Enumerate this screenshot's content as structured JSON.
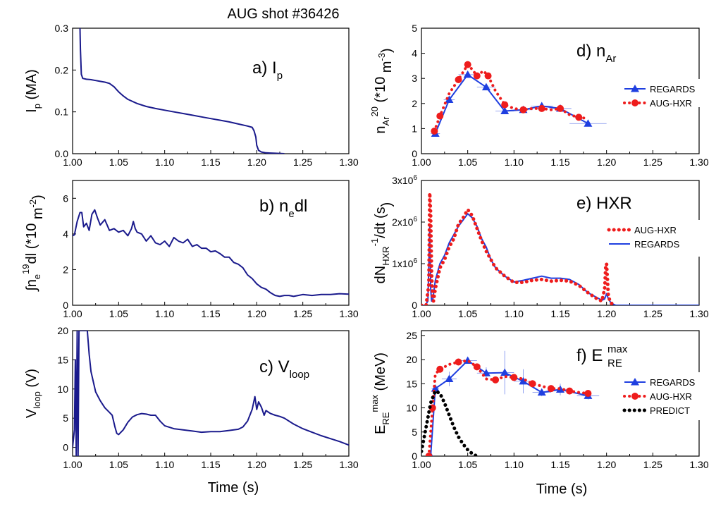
{
  "figure_title": "AUG shot #36426",
  "x_axis_title": "Time (s)",
  "x_tick_labels": [
    "1.00",
    "1.05",
    "1.10",
    "1.15",
    "1.20",
    "1.25",
    "1.30"
  ],
  "chart_data": [
    {
      "id": "a",
      "type": "line",
      "panel_label": "a) I",
      "panel_label_sub": "p",
      "ylabel": "I",
      "ylabel_sub": "p",
      "ylabel_tail": " (MA)",
      "xlim": [
        1.0,
        1.3
      ],
      "ylim": [
        0,
        0.3
      ],
      "y_ticks": [
        "0.0",
        "0.1",
        "0.2",
        "0.3"
      ],
      "y_tick_values": [
        0,
        0.1,
        0.2,
        0.3
      ],
      "series": [
        {
          "color": "#1a1a8c",
          "x": [
            1.008,
            1.0085,
            1.0095,
            1.011,
            1.015,
            1.02,
            1.025,
            1.03,
            1.035,
            1.04,
            1.045,
            1.05,
            1.055,
            1.06,
            1.07,
            1.08,
            1.09,
            1.1,
            1.11,
            1.12,
            1.13,
            1.14,
            1.15,
            1.16,
            1.17,
            1.18,
            1.19,
            1.195,
            1.197,
            1.199,
            1.2,
            1.202,
            1.205,
            1.21,
            1.22,
            1.23
          ],
          "y": [
            0.3,
            0.25,
            0.19,
            0.18,
            0.178,
            0.177,
            0.175,
            0.173,
            0.171,
            0.168,
            0.16,
            0.148,
            0.138,
            0.13,
            0.12,
            0.113,
            0.108,
            0.104,
            0.1,
            0.096,
            0.092,
            0.088,
            0.084,
            0.08,
            0.076,
            0.071,
            0.066,
            0.063,
            0.055,
            0.04,
            0.02,
            0.008,
            0.004,
            0.002,
            0.001,
            0.0
          ]
        }
      ]
    },
    {
      "id": "b",
      "type": "line",
      "panel_label": "b) n",
      "panel_label_sub": "e",
      "panel_label_tail": "dl",
      "ylabel": "∫n",
      "ylabel_sub": "e",
      "ylabel_tail": "dl (*10",
      "ylabel_sup": "19",
      "ylabel_tail2": " m",
      "ylabel_sup2": "-2",
      "ylabel_end": ")",
      "xlim": [
        1.0,
        1.3
      ],
      "ylim": [
        0,
        7
      ],
      "y_ticks": [
        "0",
        "2",
        "4",
        "6"
      ],
      "y_tick_values": [
        0,
        2,
        4,
        6
      ],
      "series": [
        {
          "color": "#1a1a8c",
          "x": [
            1.0,
            1.002,
            1.005,
            1.008,
            1.01,
            1.012,
            1.015,
            1.018,
            1.021,
            1.024,
            1.027,
            1.03,
            1.035,
            1.04,
            1.045,
            1.05,
            1.055,
            1.06,
            1.064,
            1.066,
            1.068,
            1.07,
            1.075,
            1.08,
            1.085,
            1.09,
            1.095,
            1.1,
            1.105,
            1.11,
            1.115,
            1.12,
            1.125,
            1.13,
            1.135,
            1.14,
            1.145,
            1.15,
            1.155,
            1.16,
            1.165,
            1.17,
            1.175,
            1.18,
            1.185,
            1.19,
            1.195,
            1.2,
            1.205,
            1.21,
            1.215,
            1.22,
            1.225,
            1.23,
            1.235,
            1.24,
            1.245,
            1.25,
            1.26,
            1.27,
            1.28,
            1.29,
            1.3
          ],
          "y": [
            3.9,
            3.95,
            4.7,
            5.2,
            5.2,
            4.4,
            4.6,
            4.2,
            5.1,
            5.35,
            4.9,
            4.5,
            4.8,
            4.2,
            4.3,
            4.1,
            4.2,
            3.9,
            4.3,
            4.7,
            4.3,
            4.1,
            4.0,
            3.6,
            3.9,
            3.5,
            3.4,
            3.6,
            3.3,
            3.8,
            3.6,
            3.5,
            3.7,
            3.3,
            3.4,
            3.2,
            3.2,
            3.0,
            3.05,
            2.9,
            2.7,
            2.7,
            2.4,
            2.3,
            2.1,
            1.7,
            1.5,
            1.2,
            1.0,
            0.9,
            0.7,
            0.55,
            0.5,
            0.55,
            0.55,
            0.5,
            0.55,
            0.6,
            0.55,
            0.6,
            0.6,
            0.65,
            0.62
          ]
        }
      ]
    },
    {
      "id": "c",
      "type": "line",
      "panel_label": "c) V",
      "panel_label_sub": "loop",
      "ylabel": "V",
      "ylabel_sub": "loop",
      "ylabel_tail": " (V)",
      "xlim": [
        1.0,
        1.3
      ],
      "ylim": [
        -1.5,
        20
      ],
      "y_ticks": [
        "0",
        "5",
        "10",
        "15",
        "20"
      ],
      "y_tick_values": [
        0,
        5,
        10,
        15,
        20
      ],
      "series": [
        {
          "color": "#1a1a8c",
          "x": [
            1.0,
            1.002,
            1.003,
            1.004,
            1.005,
            1.006,
            1.007,
            1.008,
            1.009,
            1.01,
            1.012,
            1.014,
            1.016,
            1.018,
            1.02,
            1.025,
            1.03,
            1.035,
            1.04,
            1.043,
            1.046,
            1.048,
            1.05,
            1.055,
            1.06,
            1.065,
            1.07,
            1.075,
            1.08,
            1.085,
            1.09,
            1.095,
            1.1,
            1.11,
            1.12,
            1.13,
            1.14,
            1.15,
            1.16,
            1.17,
            1.18,
            1.185,
            1.19,
            1.195,
            1.198,
            1.2,
            1.202,
            1.205,
            1.208,
            1.21,
            1.215,
            1.22,
            1.225,
            1.23,
            1.24,
            1.25,
            1.26,
            1.27,
            1.28,
            1.29,
            1.3
          ],
          "y": [
            0,
            3,
            15,
            -1.5,
            20,
            -1.5,
            20,
            20,
            20,
            20,
            20,
            20,
            20,
            16,
            13,
            9.5,
            8,
            6.8,
            6,
            5.5,
            3.5,
            2.4,
            2.2,
            3.0,
            4.3,
            5.2,
            5.6,
            5.8,
            5.7,
            5.5,
            5.5,
            4.5,
            3.7,
            3.2,
            3.0,
            2.8,
            2.6,
            2.7,
            2.7,
            2.9,
            3.1,
            3.5,
            4.5,
            6.5,
            8.7,
            6.5,
            7.8,
            6.9,
            5.5,
            6.3,
            5.8,
            5.5,
            5.3,
            5.0,
            4.0,
            3.2,
            2.6,
            2.0,
            1.5,
            1.0,
            0.4
          ]
        }
      ]
    },
    {
      "id": "d",
      "type": "scatter",
      "panel_label": "d) n",
      "panel_label_sub": "Ar",
      "ylabel": "n",
      "ylabel_sub": "Ar",
      "ylabel_tail": " (*10",
      "ylabel_sup": "20",
      "ylabel_tail2": " m",
      "ylabel_sup2": "-3",
      "ylabel_end": ")",
      "xlim": [
        1.0,
        1.3
      ],
      "ylim": [
        0,
        5
      ],
      "y_ticks": [
        "0",
        "1",
        "2",
        "3",
        "4",
        "5"
      ],
      "y_tick_values": [
        0,
        1,
        2,
        3,
        4,
        5
      ],
      "legend": [
        "REGARDS",
        "AUG-HXR"
      ],
      "series": [
        {
          "name": "REGARDS",
          "style": "line-triangle",
          "color": "#1f3fe0",
          "x": [
            1.015,
            1.03,
            1.05,
            1.07,
            1.09,
            1.11,
            1.13,
            1.15,
            1.18
          ],
          "y": [
            0.8,
            2.15,
            3.15,
            2.65,
            1.7,
            1.75,
            1.9,
            1.8,
            1.2
          ],
          "xerr": [
            0.005,
            0.006,
            0.01,
            0.01,
            0.01,
            0.01,
            0.012,
            0.012,
            0.02
          ]
        },
        {
          "name": "AUG-HXR",
          "style": "dotted-circle",
          "color": "#ee1c1c",
          "x": [
            1.014,
            1.02,
            1.03,
            1.04,
            1.045,
            1.05,
            1.055,
            1.06,
            1.067,
            1.072,
            1.08,
            1.09,
            1.1,
            1.11,
            1.12,
            1.13,
            1.14,
            1.15,
            1.16,
            1.17,
            1.18
          ],
          "y": [
            0.9,
            1.5,
            2.4,
            2.95,
            3.25,
            3.55,
            3.35,
            3.1,
            3.3,
            3.1,
            2.5,
            1.95,
            1.8,
            1.75,
            1.8,
            1.8,
            1.75,
            1.8,
            1.55,
            1.45,
            1.4
          ]
        }
      ]
    },
    {
      "id": "e",
      "type": "line",
      "panel_label": "e) HXR",
      "ylabel": "dN",
      "ylabel_sub": "HXR",
      "ylabel_tail": "/dt (s",
      "ylabel_sup": "-1",
      "ylabel_end": ")",
      "xlim": [
        1.0,
        1.3
      ],
      "ylim": [
        0,
        3000000
      ],
      "y_ticks": [
        "0",
        "1x10",
        "2x10",
        "3x10"
      ],
      "y_tick_sup": "6",
      "y_tick_values": [
        0,
        1000000,
        2000000,
        3000000
      ],
      "legend": [
        "AUG-HXR",
        "REGARDS"
      ],
      "series": [
        {
          "name": "REGARDS",
          "style": "line",
          "color": "#1f3fe0",
          "x": [
            1.0,
            1.004,
            1.007,
            1.008,
            1.009,
            1.01,
            1.011,
            1.012,
            1.015,
            1.02,
            1.025,
            1.03,
            1.035,
            1.04,
            1.045,
            1.05,
            1.055,
            1.06,
            1.065,
            1.07,
            1.075,
            1.08,
            1.085,
            1.09,
            1.1,
            1.11,
            1.12,
            1.13,
            1.14,
            1.15,
            1.16,
            1.17,
            1.18,
            1.19,
            1.195,
            1.198,
            1.2,
            1.202,
            1.205,
            1.21,
            1.3
          ],
          "y": [
            0,
            0,
            100000,
            1000000,
            1900000,
            400000,
            100000,
            100000,
            600000,
            1000000,
            1200000,
            1500000,
            1700000,
            1900000,
            2050000,
            2200000,
            2100000,
            1900000,
            1600000,
            1400000,
            1100000,
            900000,
            800000,
            700000,
            560000,
            600000,
            650000,
            700000,
            650000,
            650000,
            620000,
            500000,
            300000,
            180000,
            120000,
            150000,
            280000,
            150000,
            50000,
            0,
            0
          ]
        },
        {
          "name": "AUG-HXR",
          "style": "dotted",
          "color": "#ee1c1c",
          "x": [
            1.0,
            1.005,
            1.008,
            1.009,
            1.01,
            1.011,
            1.012,
            1.013,
            1.015,
            1.02,
            1.025,
            1.03,
            1.035,
            1.04,
            1.045,
            1.05,
            1.055,
            1.06,
            1.065,
            1.07,
            1.08,
            1.09,
            1.1,
            1.11,
            1.12,
            1.13,
            1.14,
            1.15,
            1.16,
            1.17,
            1.18,
            1.19,
            1.195,
            1.198,
            1.199,
            1.2,
            1.201,
            1.202,
            1.205,
            1.21
          ],
          "y": [
            0,
            0,
            500000,
            2700000,
            2200000,
            800000,
            200000,
            100000,
            400000,
            900000,
            1100000,
            1400000,
            1600000,
            1950000,
            2100000,
            2300000,
            2150000,
            1850000,
            1550000,
            1300000,
            900000,
            700000,
            550000,
            550000,
            600000,
            620000,
            580000,
            600000,
            580000,
            480000,
            300000,
            150000,
            100000,
            400000,
            900000,
            1000000,
            600000,
            200000,
            50000,
            0
          ]
        }
      ]
    },
    {
      "id": "f",
      "type": "scatter",
      "panel_label": "f) E",
      "panel_label_sub": "RE",
      "panel_label_sup": "max",
      "ylabel": "E",
      "ylabel_sub": "RE",
      "ylabel_sup": "max",
      "ylabel_tail": " (MeV)",
      "xlim": [
        1.0,
        1.3
      ],
      "ylim": [
        0,
        26
      ],
      "y_ticks": [
        "0",
        "5",
        "10",
        "15",
        "20",
        "25"
      ],
      "y_tick_values": [
        0,
        5,
        10,
        15,
        20,
        25
      ],
      "legend": [
        "REGARDS",
        "AUG-HXR",
        "PREDICT"
      ],
      "series": [
        {
          "name": "REGARDS",
          "style": "line-triangle",
          "color": "#1f3fe0",
          "x": [
            1.01,
            1.015,
            1.03,
            1.05,
            1.07,
            1.09,
            1.11,
            1.13,
            1.15,
            1.18
          ],
          "y": [
            0,
            14,
            16,
            19.8,
            17.2,
            17.3,
            15.5,
            13.2,
            13.8,
            12.5
          ],
          "xerr": [
            0,
            0.004,
            0.008,
            0.01,
            0.01,
            0.01,
            0.01,
            0.01,
            0.01,
            0.012
          ],
          "yerr": [
            0,
            0.5,
            1.5,
            0.6,
            1.2,
            4.5,
            2.5,
            0.8,
            1.2,
            0.8
          ]
        },
        {
          "name": "AUG-HXR",
          "style": "dotted-circle",
          "color": "#ee1c1c",
          "x": [
            1.008,
            1.012,
            1.015,
            1.02,
            1.03,
            1.04,
            1.05,
            1.06,
            1.07,
            1.08,
            1.09,
            1.1,
            1.11,
            1.12,
            1.13,
            1.14,
            1.15,
            1.16,
            1.17,
            1.18
          ],
          "y": [
            0,
            10,
            17,
            18,
            19,
            19.5,
            19.8,
            18.5,
            16,
            15.8,
            16.5,
            16.3,
            16,
            15,
            14.5,
            14,
            14,
            13.5,
            13.2,
            13
          ]
        },
        {
          "name": "PREDICT",
          "style": "dotted",
          "color": "#000000",
          "x": [
            1.0,
            1.005,
            1.01,
            1.015,
            1.02,
            1.025,
            1.03,
            1.035,
            1.04,
            1.045,
            1.05,
            1.055,
            1.06
          ],
          "y": [
            1,
            6,
            11,
            13.5,
            13,
            11,
            8.5,
            6,
            4,
            2.5,
            1.3,
            0.5,
            0
          ]
        }
      ]
    }
  ]
}
